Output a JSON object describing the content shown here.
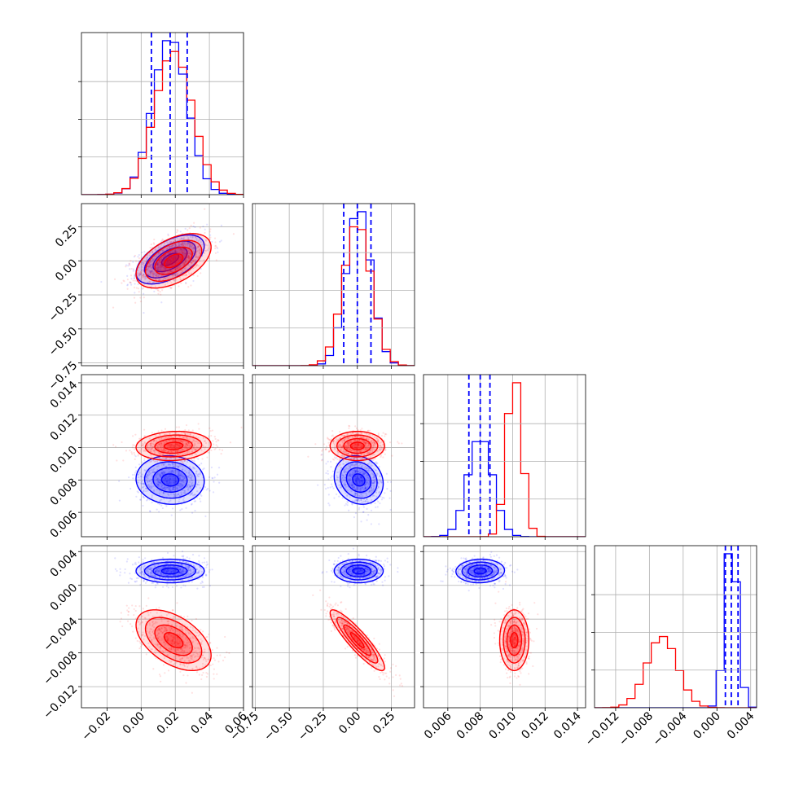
{
  "chart_data": {
    "type": "corner",
    "grid": true,
    "params": [
      {
        "range": [
          -0.035,
          0.06
        ],
        "ticks": [
          -0.02,
          0.0,
          0.02,
          0.04,
          0.06
        ],
        "tick_labels": [
          "−0.02",
          "0.00",
          "0.02",
          "0.04",
          "0.06"
        ]
      },
      {
        "range": [
          -0.77,
          0.42
        ],
        "ticks": [
          -0.75,
          -0.5,
          -0.25,
          0.0,
          0.25
        ],
        "tick_labels": [
          "−0.75",
          "−0.50",
          "−0.25",
          "0.00",
          "0.25"
        ]
      },
      {
        "range": [
          0.0045,
          0.0145
        ],
        "ticks": [
          0.006,
          0.008,
          0.01,
          0.012,
          0.014
        ],
        "tick_labels": [
          "0.006",
          "0.008",
          "0.010",
          "0.012",
          "0.014"
        ]
      },
      {
        "range": [
          -0.0145,
          0.0047
        ],
        "ticks": [
          -0.012,
          -0.008,
          -0.004,
          0.0,
          0.004
        ],
        "tick_labels": [
          "−0.012",
          "−0.008",
          "−0.004",
          "0.000",
          "0.004"
        ]
      }
    ],
    "series": [
      {
        "color": "#0000ff",
        "means": [
          0.017,
          0.01,
          0.008,
          0.0017
        ],
        "sigmas": [
          0.01,
          0.09,
          0.00075,
          0.0007
        ],
        "correlations": {
          "1-0": 0.55,
          "2-0": -0.05,
          "2-1": -0.15,
          "3-0": 0.0,
          "3-1": 0.0,
          "3-2": 0.05
        },
        "quantiles": [
          [
            0.006,
            0.017,
            0.027
          ],
          [
            -0.1,
            0.0,
            0.1
          ],
          [
            0.0073,
            0.008,
            0.0086
          ],
          [
            0.001,
            0.0017,
            0.0025
          ]
        ]
      },
      {
        "color": "#ff0000",
        "means": [
          0.019,
          0.0,
          0.0101,
          -0.0065
        ],
        "sigmas": [
          0.011,
          0.1,
          0.00045,
          0.0018
        ],
        "correlations": {
          "1-0": 0.5,
          "2-0": 0.1,
          "2-1": 0.0,
          "3-0": -0.5,
          "3-1": -0.9,
          "3-2": 0.0
        }
      }
    ],
    "quantile_color": "#0000ff"
  }
}
